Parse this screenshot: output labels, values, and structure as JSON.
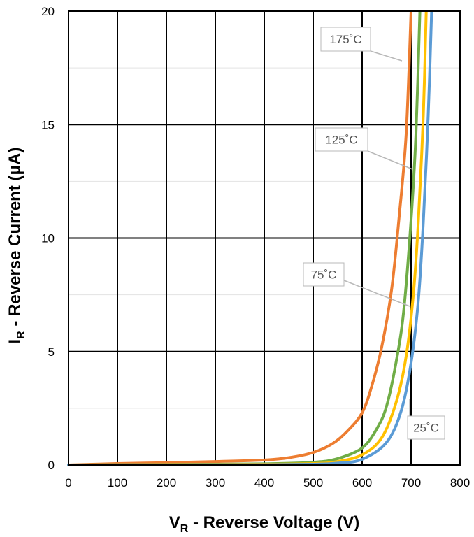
{
  "chart_data": {
    "type": "line",
    "title": "",
    "xlabel": {
      "main": "V",
      "sub": "R",
      "rest": " - Reverse Voltage (V)"
    },
    "ylabel": {
      "main": "I",
      "sub": "R",
      "rest": " - Reverse Current (μA)"
    },
    "xlim": [
      0,
      800
    ],
    "ylim": [
      0,
      20
    ],
    "x_major_ticks": [
      0,
      100,
      200,
      300,
      400,
      500,
      600,
      700,
      800
    ],
    "y_major_ticks": [
      0,
      5,
      10,
      15,
      20
    ],
    "y_minor_ticks": [
      2.5,
      7.5,
      12.5,
      17.5
    ],
    "x_tick_labels": [
      "0",
      "100",
      "200",
      "300",
      "400",
      "500",
      "600",
      "700",
      "800"
    ],
    "y_tick_labels": [
      "0",
      "5",
      "10",
      "15",
      "20"
    ],
    "grid": true,
    "legend": "callout labels",
    "series": [
      {
        "name": "175˚C",
        "color": "#ED7D31",
        "x": [
          0,
          100,
          200,
          300,
          400,
          450,
          500,
          540,
          570,
          600,
          620,
          640,
          660,
          675,
          690,
          700
        ],
        "y": [
          0.0,
          0.06,
          0.1,
          0.15,
          0.22,
          0.32,
          0.55,
          0.95,
          1.5,
          2.3,
          3.5,
          5.2,
          7.7,
          10.8,
          14.6,
          20.0
        ]
      },
      {
        "name": "125˚C",
        "color": "#70AD47",
        "x": [
          0,
          200,
          400,
          500,
          550,
          600,
          630,
          650,
          670,
          685,
          700,
          710,
          718
        ],
        "y": [
          0.0,
          0.02,
          0.05,
          0.12,
          0.28,
          0.75,
          1.6,
          2.6,
          4.6,
          6.8,
          10.8,
          14.6,
          20.0
        ]
      },
      {
        "name": "75˚C",
        "color": "#FFC000",
        "x": [
          0,
          200,
          400,
          500,
          550,
          600,
          640,
          670,
          690,
          705,
          715,
          725,
          731
        ],
        "y": [
          0.0,
          0.01,
          0.03,
          0.06,
          0.15,
          0.45,
          1.2,
          2.8,
          4.8,
          7.6,
          10.8,
          15.4,
          20.0
        ]
      },
      {
        "name": "25˚C",
        "color": "#5B9BD5",
        "x": [
          0,
          200,
          400,
          500,
          550,
          600,
          650,
          680,
          700,
          715,
          725,
          735,
          742
        ],
        "y": [
          0.0,
          0.005,
          0.01,
          0.03,
          0.08,
          0.25,
          1.0,
          2.4,
          4.5,
          7.3,
          10.7,
          15.4,
          20.0
        ]
      }
    ]
  }
}
